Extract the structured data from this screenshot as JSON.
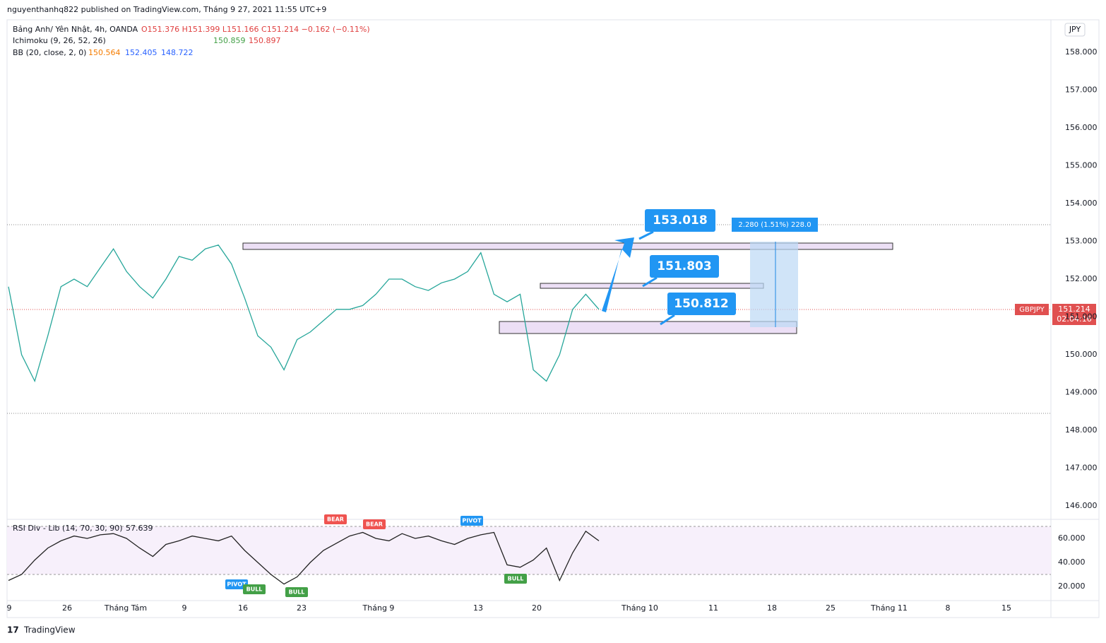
{
  "header": {
    "published": "nguyenthanhq822 published on TradingView.com, Tháng 9 27, 2021 11:55 UTC+9"
  },
  "legend": {
    "symbol": "Bảng Anh/ Yên Nhật, 4h, OANDA",
    "ohlc": "O151.376 H151.399 L151.166 C151.214 −0.162 (−0.11%)",
    "ichimoku": "Ichimoku (9, 26, 52, 26)",
    "ichimoku_a": "150.859",
    "ichimoku_b": "150.897",
    "bb": "BB (20, close, 2, 0)",
    "bb_basis": "150.564",
    "bb_upper": "152.405",
    "bb_lower": "148.722"
  },
  "currency": "JPY",
  "price_axis": [
    "158.000",
    "157.000",
    "156.000",
    "155.000",
    "154.000",
    "153.000",
    "152.000",
    "151.000",
    "150.000",
    "149.000",
    "148.000",
    "147.000",
    "146.000"
  ],
  "rsi_axis": [
    "60.000",
    "40.000",
    "20.000"
  ],
  "rsi_label": "RSI Div - Lib (14, 70, 30, 90)",
  "rsi_value": "57.639",
  "time_axis": [
    "9",
    "26",
    "Tháng Tám",
    "9",
    "16",
    "23",
    "Tháng 9",
    "13",
    "20",
    "Tháng 10",
    "11",
    "18",
    "25",
    "Tháng 11",
    "8",
    "15"
  ],
  "badges": {
    "symbol": "GBPJPY",
    "price": "151.214",
    "countdown": "02:04:16"
  },
  "annotations": [
    "153.018",
    "151.803",
    "150.812"
  ],
  "measure": "2.280 (1.51%) 228.0",
  "signals": [
    "PIVOT",
    "BEAR",
    "BEAR",
    "PIVOT",
    "BULL",
    "BULL",
    "BULL"
  ],
  "close_estimate": [
    151.8,
    150.0,
    149.3,
    150.5,
    151.8,
    152.0,
    151.8,
    152.3,
    152.8,
    152.2,
    151.8,
    151.5,
    152.0,
    152.6,
    152.5,
    152.8,
    152.9,
    152.4,
    151.5,
    150.5,
    150.2,
    149.6,
    150.4,
    150.6,
    150.9,
    151.2,
    151.2,
    151.3,
    151.6,
    152.0,
    152.0,
    151.8,
    151.7,
    151.9,
    152.0,
    152.2,
    152.7,
    151.6,
    151.4,
    151.6,
    149.6,
    149.3,
    150.0,
    151.2,
    151.6,
    151.2
  ],
  "rsi_estimate": [
    25,
    30,
    42,
    52,
    58,
    62,
    60,
    63,
    64,
    60,
    52,
    45,
    55,
    58,
    62,
    60,
    58,
    62,
    50,
    40,
    30,
    22,
    28,
    40,
    50,
    56,
    62,
    65,
    60,
    58,
    64,
    60,
    62,
    58,
    55,
    60,
    63,
    65,
    38,
    36,
    42,
    52,
    25,
    48,
    66,
    58
  ],
  "footer": "TradingView"
}
